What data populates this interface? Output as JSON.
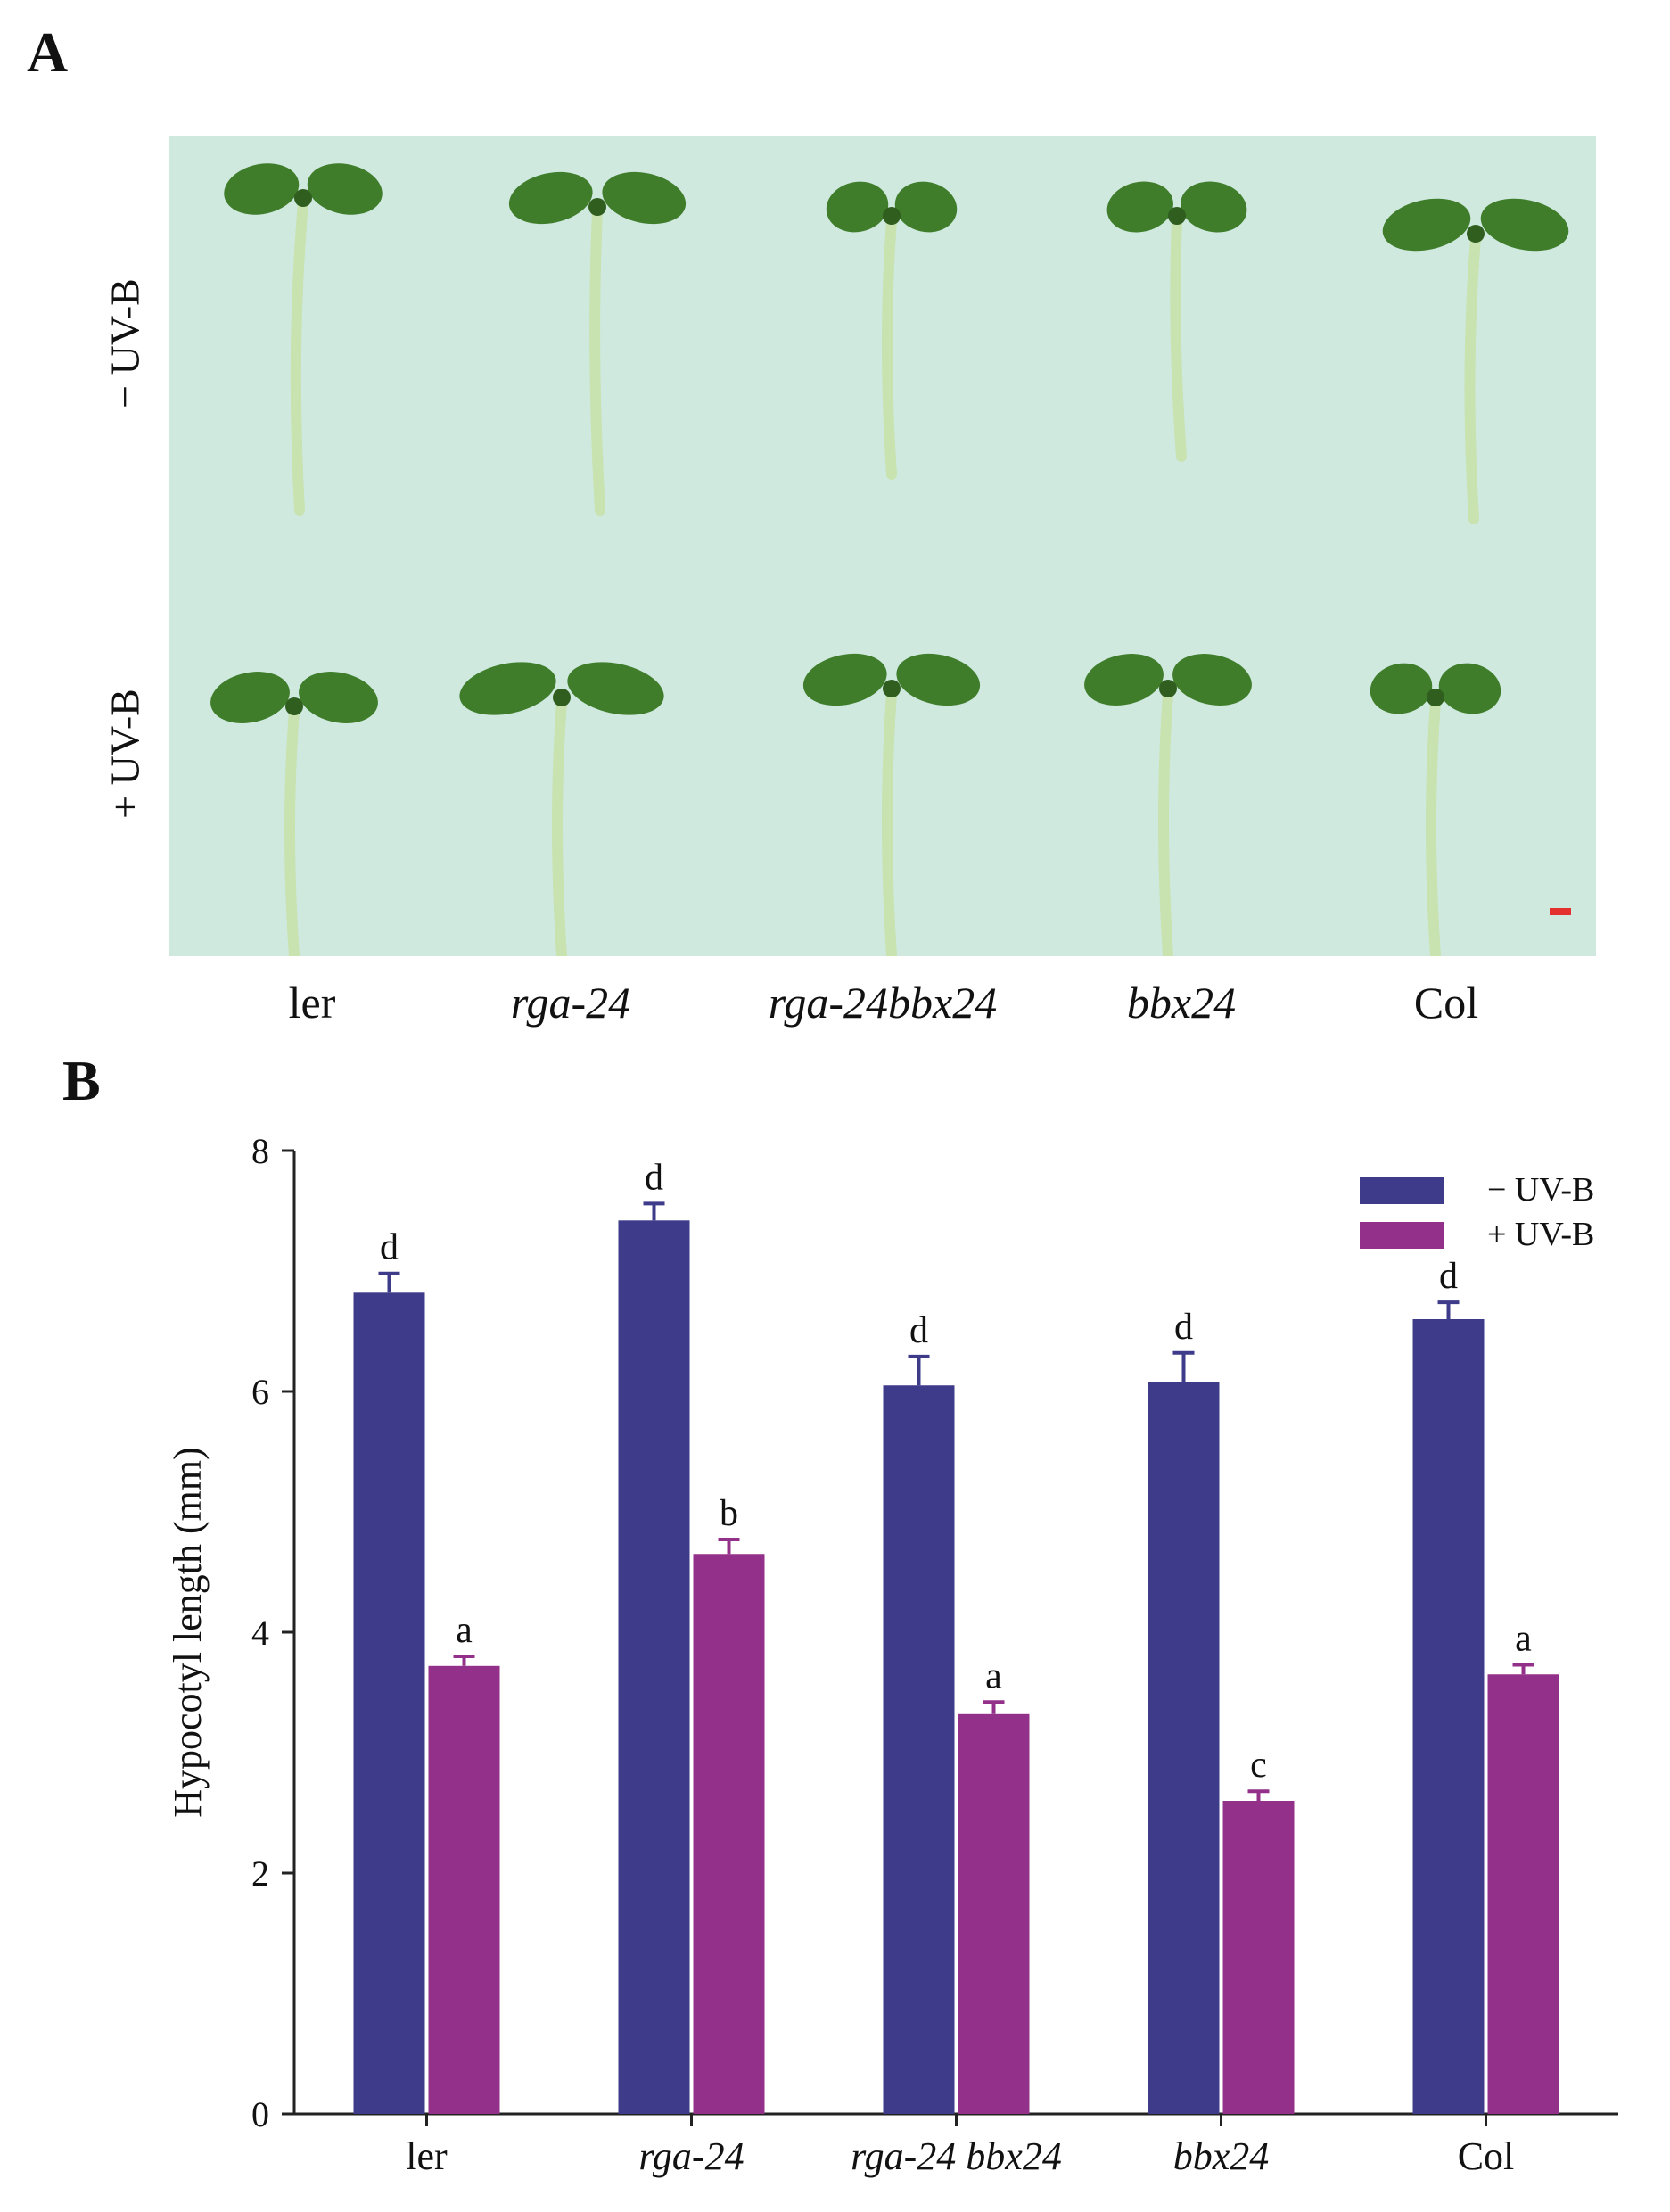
{
  "panels": {
    "a": {
      "label": "A"
    },
    "b": {
      "label": "B"
    }
  },
  "photos": {
    "row_labels": [
      "− UV-B",
      "+ UV-B"
    ],
    "genotypes": [
      {
        "label": "ler",
        "italic": false
      },
      {
        "label": "rga-24",
        "italic": true
      },
      {
        "label": "rga-24bbx24",
        "italic": true
      },
      {
        "label": "bbx24",
        "italic": true
      },
      {
        "label": "Col",
        "italic": false
      }
    ],
    "background_color": "#cfe9df",
    "seedling_color": "#3f7d2a",
    "hypocotyl_color": "#c8e2b0"
  },
  "chart_data": {
    "type": "bar",
    "categories": [
      "ler",
      "rga-24",
      "rga-24 bbx24",
      "bbx24",
      "Col"
    ],
    "category_italic": [
      false,
      true,
      true,
      true,
      false
    ],
    "series": [
      {
        "name": "− UV-B",
        "color": "#3d3b8a",
        "values": [
          6.82,
          7.42,
          6.05,
          6.08,
          6.6
        ],
        "errors": [
          0.16,
          0.14,
          0.24,
          0.24,
          0.14
        ],
        "labels": [
          "d",
          "d",
          "d",
          "d",
          "d"
        ]
      },
      {
        "name": "+ UV-B",
        "color": "#93308a",
        "values": [
          3.72,
          4.65,
          3.32,
          2.6,
          3.65
        ],
        "errors": [
          0.08,
          0.12,
          0.1,
          0.08,
          0.08
        ],
        "labels": [
          "a",
          "b",
          "a",
          "c",
          "a"
        ]
      }
    ],
    "ylabel": "Hypocotyl length (mm)",
    "xlabel": "",
    "ylim": [
      0,
      8
    ],
    "yticks": [
      0,
      2,
      4,
      6,
      8
    ],
    "legend": "top-right"
  }
}
